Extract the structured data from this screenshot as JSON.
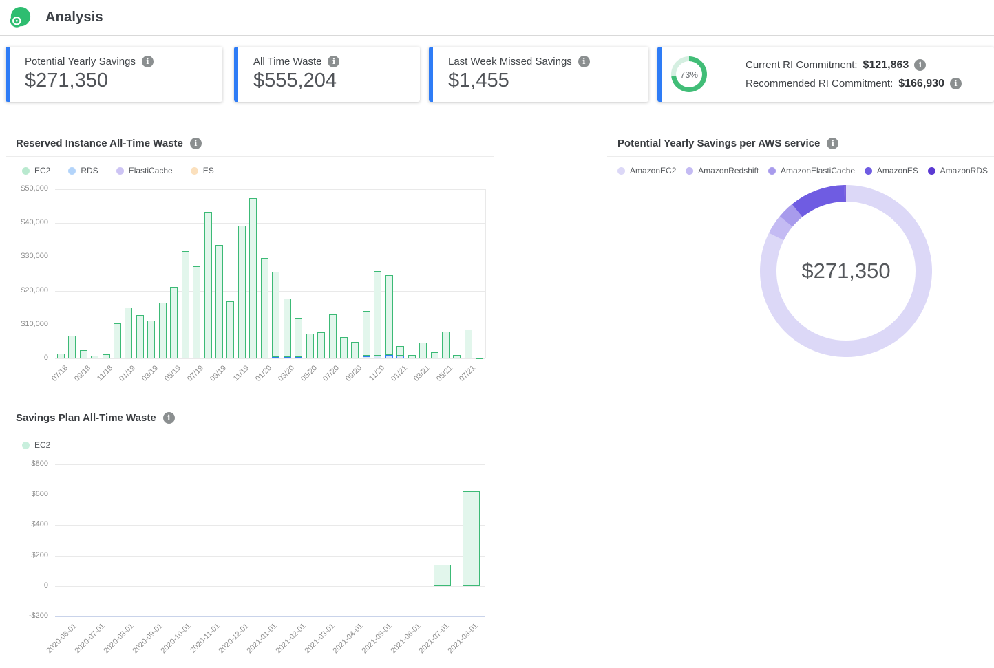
{
  "header": {
    "title": "Analysis"
  },
  "cards": [
    {
      "label": "Potential Yearly Savings",
      "value": "$271,350"
    },
    {
      "label": "All Time Waste",
      "value": "$555,204"
    },
    {
      "label": "Last Week Missed Savings",
      "value": "$1,455"
    },
    {
      "ring_percent": "73%",
      "ring_value": 73,
      "rows": [
        {
          "label": "Current RI Commitment:",
          "value": "$121,863"
        },
        {
          "label": "Recommended RI Commitment:",
          "value": "$166,930"
        }
      ]
    }
  ],
  "colors": {
    "accent_blue": "#2e7cf6",
    "ring_green": "#41bd77",
    "ring_track": "#d5efe1",
    "logo_green": "#2ebd70",
    "grid": "#e9e9e9",
    "grid_negative": "#c9d3ea"
  },
  "chart_data": [
    {
      "type": "bar",
      "stacked": true,
      "title": "Reserved Instance All-Time Waste",
      "legend": [
        {
          "name": "EC2",
          "color": "#b9e9cf"
        },
        {
          "name": "RDS",
          "color": "#b3d4fa"
        },
        {
          "name": "ElastiCache",
          "color": "#cdc4f4"
        },
        {
          "name": "ES",
          "color": "#fbe0bd"
        }
      ],
      "categories": [
        "07/18",
        "08/18",
        "09/18",
        "10/18",
        "11/18",
        "12/18",
        "01/19",
        "02/19",
        "03/19",
        "04/19",
        "05/19",
        "06/19",
        "07/19",
        "08/19",
        "09/19",
        "10/19",
        "11/19",
        "12/19",
        "01/20",
        "02/20",
        "03/20",
        "04/20",
        "05/20",
        "06/20",
        "07/20",
        "08/20",
        "09/20",
        "10/20",
        "11/20",
        "12/20",
        "01/21",
        "02/21",
        "03/21",
        "04/21",
        "05/21",
        "06/21",
        "07/21",
        "08/21"
      ],
      "tick_every": 2,
      "series": [
        {
          "name": "RDS",
          "fill": "#d9e7f8",
          "border": "#2f7ff0",
          "values": [
            0,
            0,
            0,
            0,
            0,
            0,
            0,
            0,
            0,
            0,
            0,
            0,
            0,
            0,
            0,
            0,
            0,
            0,
            0,
            500,
            450,
            420,
            0,
            0,
            0,
            0,
            0,
            700,
            900,
            1100,
            800,
            0,
            0,
            0,
            0,
            0,
            0,
            0
          ]
        },
        {
          "name": "EC2",
          "fill": "#e2f6ec",
          "border": "#3cba76",
          "values": [
            1500,
            6800,
            2400,
            900,
            1300,
            10300,
            15100,
            12900,
            11200,
            16400,
            21200,
            31700,
            27200,
            43400,
            33600,
            16800,
            39200,
            47300,
            29700,
            25200,
            17250,
            11580,
            7300,
            7800,
            13000,
            6300,
            4800,
            13300,
            24900,
            23600,
            2900,
            1100,
            4600,
            1800,
            7900,
            1100,
            8600,
            300
          ]
        },
        {
          "name": "ElastiCache",
          "fill": "#e9e4fa",
          "border": "#8f7fe8",
          "values": []
        },
        {
          "name": "ES",
          "fill": "#fdf0dc",
          "border": "#f0b35c",
          "values": []
        }
      ],
      "ylim": [
        0,
        50000
      ],
      "yticks": [
        {
          "value": 50000,
          "label": "$50,000"
        },
        {
          "value": 40000,
          "label": "$40,000"
        },
        {
          "value": 30000,
          "label": "$30,000"
        },
        {
          "value": 20000,
          "label": "$20,000"
        },
        {
          "value": 10000,
          "label": "$10,000"
        },
        {
          "value": 0,
          "label": "0"
        }
      ]
    },
    {
      "type": "donut",
      "title": "Potential Yearly Savings per AWS service",
      "center_label": "$271,350",
      "total": "$271,350",
      "slices": [
        {
          "name": "AmazonEC2",
          "percent": 82.3,
          "color": "#dcd8f7"
        },
        {
          "name": "AmazonRedshift",
          "percent": 3.7,
          "color": "#c4bbf3"
        },
        {
          "name": "AmazonElastiCache",
          "percent": 3.2,
          "color": "#a89bec"
        },
        {
          "name": "AmazonES",
          "percent": 10.5,
          "color": "#6f5ce2"
        },
        {
          "name": "AmazonRDS",
          "percent": 0.3,
          "color": "#5b3ad2"
        }
      ]
    },
    {
      "type": "bar",
      "stacked": false,
      "title": "Savings Plan All-Time Waste",
      "legend": [
        {
          "name": "EC2",
          "color": "#c8efdd"
        }
      ],
      "categories": [
        "2020-06-01",
        "2020-07-01",
        "2020-08-01",
        "2020-09-01",
        "2020-10-01",
        "2020-11-01",
        "2020-12-01",
        "2021-01-01",
        "2021-02-01",
        "2021-03-01",
        "2021-04-01",
        "2021-05-01",
        "2021-06-01",
        "2021-07-01",
        "2021-08-01"
      ],
      "tick_every": 1,
      "series": [
        {
          "name": "EC2",
          "fill": "#e2f6ec",
          "border": "#3cba76",
          "values": [
            0,
            0,
            0,
            0,
            0,
            0,
            0,
            0,
            0,
            0,
            0,
            0,
            0,
            140,
            625
          ]
        }
      ],
      "ylim": [
        -200,
        800
      ],
      "yticks": [
        {
          "value": 800,
          "label": "$800"
        },
        {
          "value": 600,
          "label": "$600"
        },
        {
          "value": 400,
          "label": "$400"
        },
        {
          "value": 200,
          "label": "$200"
        },
        {
          "value": 0,
          "label": "0"
        },
        {
          "value": -200,
          "label": "-$200"
        }
      ]
    }
  ]
}
